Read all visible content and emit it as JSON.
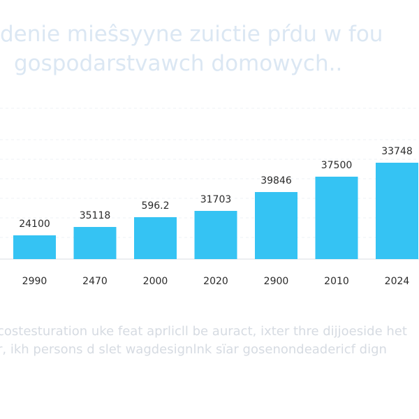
{
  "chart_data": {
    "type": "bar",
    "title_lines": [
      "denie mieŝsyyne zuictie pŕdu w fou",
      "gospodarstvawch domowych.."
    ],
    "categories": [
      "2990",
      "2470",
      "2000",
      "2020",
      "2900",
      "2010",
      "2024"
    ],
    "values": [
      24100,
      35118,
      596.2,
      31703,
      39846,
      37500,
      33748
    ],
    "bar_color": "#35c3f3",
    "grid": true,
    "legend": "none",
    "caption_lines": [
      "costesturation uke feat aprlicll be auract, ixter thre dijjoeside het",
      "r, ikh persons d slet wagdesignlnk sïar gosenondeadericf dign"
    ]
  }
}
